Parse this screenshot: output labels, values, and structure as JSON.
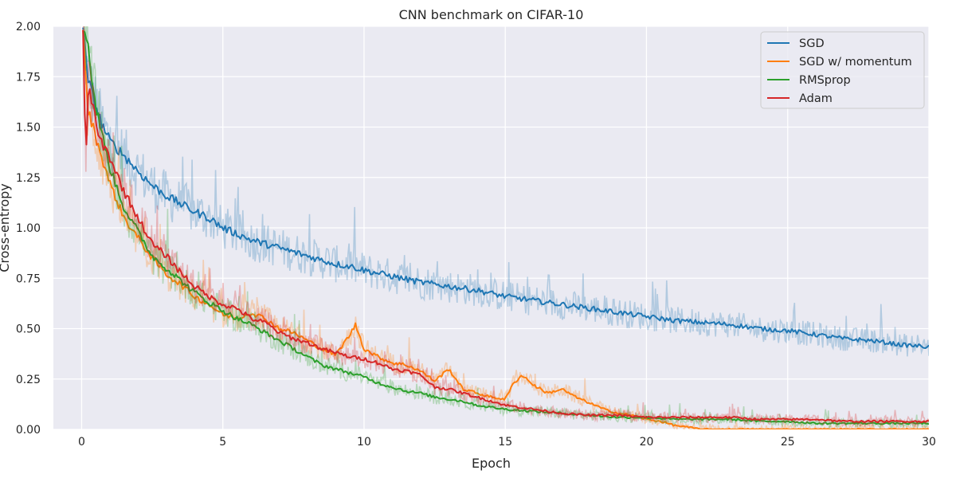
{
  "chart_data": {
    "type": "line",
    "title": "CNN benchmark on CIFAR-10",
    "xlabel": "Epoch",
    "ylabel": "Cross-entropy",
    "xlim": [
      -1,
      30
    ],
    "ylim": [
      0,
      2.0
    ],
    "x_ticks": [
      0,
      5,
      10,
      15,
      20,
      25,
      30
    ],
    "y_ticks": [
      0.0,
      0.25,
      0.5,
      0.75,
      1.0,
      1.25,
      1.5,
      1.75,
      2.0
    ],
    "x_tick_labels": [
      "0",
      "5",
      "10",
      "15",
      "20",
      "25",
      "30"
    ],
    "y_tick_labels": [
      "0.00",
      "0.25",
      "0.50",
      "0.75",
      "1.00",
      "1.25",
      "1.50",
      "1.75",
      "2.00"
    ],
    "grid": true,
    "legend_position": "top-right",
    "background": "#eaeaf2",
    "series": [
      {
        "name": "SGD",
        "color": "#1f77b4",
        "x": [
          0.05,
          0.2,
          0.4,
          0.7,
          1,
          1.5,
          2,
          2.5,
          3,
          3.5,
          4,
          4.5,
          5,
          5.5,
          6,
          6.5,
          7,
          7.5,
          8,
          8.5,
          9,
          9.5,
          10,
          11,
          12,
          13,
          14,
          15,
          16,
          17,
          18,
          19,
          20,
          21,
          22,
          23,
          24,
          25,
          26,
          27,
          28,
          29,
          30
        ],
        "y": [
          2.0,
          1.75,
          1.65,
          1.52,
          1.43,
          1.36,
          1.28,
          1.21,
          1.16,
          1.12,
          1.08,
          1.05,
          1.0,
          0.97,
          0.94,
          0.92,
          0.9,
          0.88,
          0.86,
          0.84,
          0.82,
          0.81,
          0.79,
          0.76,
          0.73,
          0.71,
          0.69,
          0.66,
          0.64,
          0.62,
          0.6,
          0.58,
          0.56,
          0.54,
          0.53,
          0.52,
          0.5,
          0.49,
          0.47,
          0.45,
          0.44,
          0.42,
          0.41
        ]
      },
      {
        "name": "SGD w/ momentum",
        "color": "#ff7f0e",
        "x": [
          0.05,
          0.2,
          0.5,
          1,
          1.5,
          2,
          2.5,
          3,
          3.5,
          4,
          4.5,
          5,
          5.5,
          6,
          6.5,
          7,
          7.5,
          8,
          8.5,
          9,
          9.5,
          9.7,
          10,
          10.5,
          11,
          11.5,
          12,
          12.5,
          13,
          13.5,
          14,
          14.5,
          15,
          15.3,
          15.6,
          16,
          16.5,
          17,
          17.5,
          18,
          18.5,
          19,
          19.5,
          20,
          20.5,
          21,
          21.5,
          22,
          23,
          24,
          25,
          26,
          27,
          28,
          29,
          30
        ],
        "y": [
          2.0,
          1.6,
          1.45,
          1.22,
          1.05,
          0.95,
          0.85,
          0.77,
          0.72,
          0.66,
          0.62,
          0.57,
          0.55,
          0.58,
          0.55,
          0.5,
          0.48,
          0.44,
          0.4,
          0.37,
          0.47,
          0.52,
          0.4,
          0.36,
          0.33,
          0.32,
          0.29,
          0.24,
          0.3,
          0.2,
          0.18,
          0.16,
          0.15,
          0.23,
          0.27,
          0.22,
          0.18,
          0.2,
          0.16,
          0.13,
          0.1,
          0.08,
          0.07,
          0.05,
          0.04,
          0.02,
          0.01,
          0.0,
          0.0,
          0.0,
          0.0,
          0.0,
          0.0,
          0.0,
          0.0,
          0.0
        ]
      },
      {
        "name": "RMSprop",
        "color": "#2ca02c",
        "x": [
          0.05,
          0.2,
          0.3,
          0.5,
          1,
          1.5,
          2,
          2.5,
          3,
          3.5,
          4,
          4.5,
          5,
          5.5,
          6,
          6.5,
          7,
          7.5,
          8,
          8.5,
          9,
          9.5,
          10,
          10.5,
          11,
          11.5,
          12,
          12.5,
          13,
          13.5,
          14,
          14.5,
          15,
          16,
          17,
          18,
          19,
          20,
          21,
          22,
          23,
          24,
          25,
          26,
          27,
          28,
          29,
          30
        ],
        "y": [
          2.0,
          1.95,
          1.8,
          1.6,
          1.3,
          1.1,
          0.98,
          0.86,
          0.8,
          0.74,
          0.68,
          0.63,
          0.59,
          0.55,
          0.52,
          0.48,
          0.44,
          0.4,
          0.36,
          0.32,
          0.3,
          0.28,
          0.26,
          0.23,
          0.21,
          0.19,
          0.18,
          0.16,
          0.15,
          0.14,
          0.12,
          0.11,
          0.1,
          0.09,
          0.08,
          0.07,
          0.06,
          0.06,
          0.05,
          0.05,
          0.05,
          0.04,
          0.04,
          0.03,
          0.03,
          0.03,
          0.03,
          0.03
        ]
      },
      {
        "name": "Adam",
        "color": "#d62728",
        "x": [
          0.05,
          0.1,
          0.15,
          0.25,
          0.4,
          0.6,
          1,
          1.5,
          2,
          2.5,
          3,
          3.5,
          4,
          4.5,
          5,
          5.5,
          6,
          6.5,
          7,
          7.5,
          8,
          8.5,
          9,
          9.5,
          10,
          10.5,
          11,
          11.5,
          12,
          12.5,
          13,
          13.5,
          14,
          14.5,
          15,
          15.5,
          16,
          17,
          18,
          19,
          20,
          21,
          22,
          23,
          24,
          25,
          26,
          27,
          28,
          29,
          30
        ],
        "y": [
          2.0,
          1.6,
          1.35,
          1.72,
          1.6,
          1.45,
          1.35,
          1.18,
          1.05,
          0.92,
          0.86,
          0.78,
          0.71,
          0.66,
          0.62,
          0.6,
          0.55,
          0.53,
          0.48,
          0.45,
          0.43,
          0.4,
          0.38,
          0.36,
          0.35,
          0.33,
          0.3,
          0.29,
          0.27,
          0.21,
          0.2,
          0.18,
          0.16,
          0.14,
          0.12,
          0.11,
          0.1,
          0.08,
          0.07,
          0.07,
          0.06,
          0.06,
          0.06,
          0.06,
          0.05,
          0.05,
          0.05,
          0.04,
          0.04,
          0.04,
          0.04
        ]
      }
    ]
  }
}
